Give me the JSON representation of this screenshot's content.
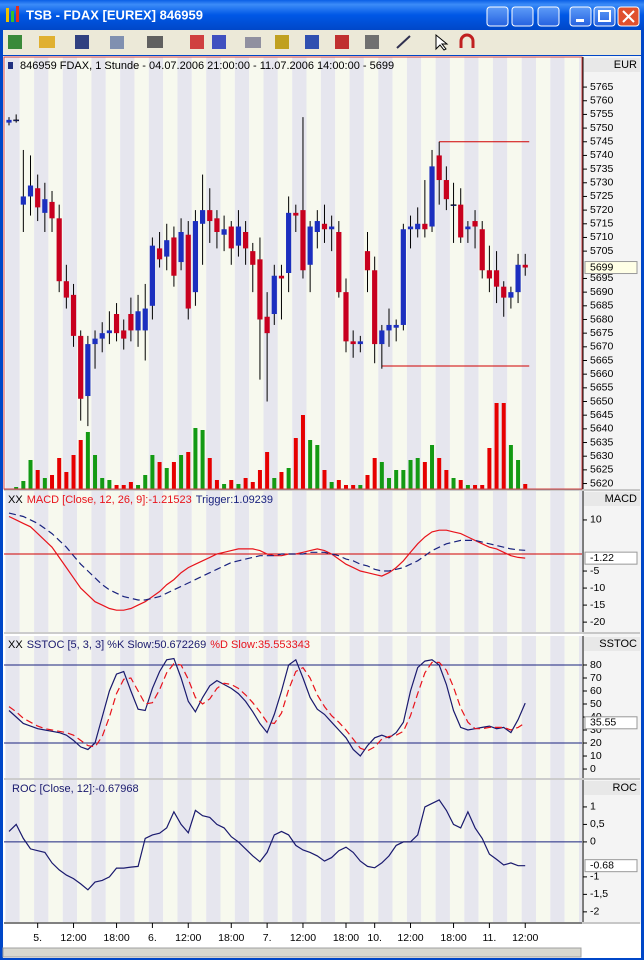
{
  "window": {
    "title": "TSB - FDAX [EUREX] 846959"
  },
  "chart_data": [
    {
      "type": "candlestick",
      "title": "846959 FDAX, 1 Stunde - 04.07.2006 21:00:00 - 11.07.2006 14:00:00 - 5699",
      "axis_label": "EUR",
      "open": [
        5752,
        5753,
        5722,
        5725,
        5728,
        5719,
        5723,
        5717,
        5694,
        5689,
        5674,
        5652,
        5671,
        5673,
        5675,
        5682,
        5676,
        5682,
        5676,
        5676,
        5685,
        5706,
        5703,
        5710,
        5701,
        5711,
        5690,
        5715,
        5720,
        5717,
        5711,
        5714,
        5707,
        5712,
        5705,
        5702,
        5681,
        5682,
        5696,
        5697,
        5719,
        5720,
        5700,
        5712,
        5715,
        5713,
        5712,
        5690,
        5672,
        5671,
        5705,
        5698,
        5671,
        5676,
        5677,
        5678,
        5713,
        5713,
        5715,
        5714,
        5740,
        5731,
        5722,
        5722,
        5713,
        5716,
        5713,
        5698,
        5698,
        5692,
        5688,
        5690,
        5700
      ],
      "high": [
        5754,
        5755,
        5742,
        5740,
        5733,
        5730,
        5727,
        5722,
        5700,
        5693,
        5676,
        5674,
        5676,
        5679,
        5683,
        5686,
        5680,
        5688,
        5689,
        5693,
        5710,
        5712,
        5715,
        5714,
        5717,
        5716,
        5720,
        5733,
        5728,
        5720,
        5718,
        5716,
        5720,
        5716,
        5708,
        5710,
        5690,
        5700,
        5700,
        5725,
        5722,
        5754,
        5716,
        5720,
        5722,
        5718,
        5716,
        5695,
        5676,
        5674,
        5712,
        5703,
        5678,
        5684,
        5680,
        5715,
        5718,
        5721,
        5731,
        5742,
        5745,
        5736,
        5730,
        5728,
        5716,
        5720,
        5716,
        5707,
        5705,
        5694,
        5692,
        5704,
        5704
      ],
      "low": [
        5751,
        5752,
        5712,
        5718,
        5716,
        5712,
        5712,
        5690,
        5684,
        5670,
        5643,
        5641,
        5662,
        5668,
        5671,
        5672,
        5669,
        5672,
        5670,
        5665,
        5680,
        5699,
        5698,
        5692,
        5698,
        5680,
        5685,
        5700,
        5708,
        5706,
        5705,
        5700,
        5703,
        5700,
        5690,
        5658,
        5650,
        5678,
        5680,
        5690,
        5712,
        5695,
        5690,
        5706,
        5708,
        5705,
        5688,
        5668,
        5666,
        5668,
        5690,
        5664,
        5662,
        5670,
        5672,
        5676,
        5706,
        5710,
        5710,
        5712,
        5722,
        5720,
        5708,
        5708,
        5708,
        5706,
        5695,
        5690,
        5686,
        5681,
        5684,
        5686,
        5696
      ],
      "close": [
        5753,
        5753,
        5725,
        5729,
        5721,
        5724,
        5717,
        5694,
        5688,
        5674,
        5651,
        5671,
        5673,
        5675,
        5676,
        5675,
        5673,
        5676,
        5683,
        5684,
        5707,
        5702,
        5709,
        5696,
        5712,
        5684,
        5716,
        5720,
        5716,
        5712,
        5713,
        5706,
        5714,
        5706,
        5700,
        5680,
        5675,
        5696,
        5695,
        5719,
        5718,
        5698,
        5714,
        5716,
        5713,
        5714,
        5690,
        5672,
        5671,
        5672,
        5698,
        5671,
        5676,
        5678,
        5678,
        5713,
        5714,
        5715,
        5713,
        5736,
        5731,
        5724,
        5722,
        5710,
        5714,
        5714,
        5698,
        5695,
        5692,
        5688,
        5690,
        5700,
        5699
      ],
      "volume": [
        0,
        2,
        8,
        29,
        19,
        11,
        14,
        31,
        17,
        34,
        49,
        57,
        34,
        11,
        9,
        4,
        4,
        7,
        4,
        14,
        34,
        27,
        21,
        27,
        34,
        37,
        61,
        59,
        31,
        9,
        5,
        9,
        5,
        11,
        7,
        19,
        37,
        11,
        17,
        21,
        51,
        74,
        49,
        44,
        19,
        7,
        9,
        4,
        4,
        4,
        14,
        31,
        27,
        11,
        19,
        19,
        29,
        31,
        27,
        44,
        31,
        19,
        11,
        9,
        4,
        4,
        4,
        41,
        86,
        86,
        44,
        29,
        5
      ],
      "up_color": "#1c2fbf",
      "down_color": "#c8001e",
      "volume_up_color": "#139a13",
      "volume_down_color": "#e60000",
      "levels": [
        5745,
        5663
      ],
      "level_color": "#d00000",
      "ylim": [
        5618,
        5776
      ],
      "yticks": [
        5765,
        5760,
        5755,
        5750,
        5745,
        5740,
        5735,
        5730,
        5725,
        5720,
        5715,
        5710,
        5705,
        5695,
        5690,
        5685,
        5680,
        5675,
        5670,
        5665,
        5660,
        5655,
        5650,
        5645,
        5640,
        5635,
        5630,
        5625,
        5620
      ],
      "last_label": "5699"
    },
    {
      "type": "line",
      "prefix": "XX",
      "axis_label": "MACD",
      "series": [
        {
          "name": "MACD [Close, 12, 26, 9]:-1.21523",
          "color": "#e8141c",
          "values": [
            11,
            10,
            9,
            8,
            6,
            4,
            2,
            -1,
            -4,
            -7,
            -10,
            -12,
            -14,
            -15,
            -16,
            -16.5,
            -16.5,
            -16,
            -15,
            -14,
            -12.5,
            -11,
            -9,
            -7.5,
            -5.5,
            -4,
            -3,
            -2,
            -1,
            0,
            0.5,
            1,
            1.5,
            1.5,
            1.5,
            1,
            0,
            -0.5,
            -0.5,
            0,
            0,
            0.5,
            1,
            1.5,
            1,
            0,
            -1.5,
            -3,
            -4,
            -5,
            -5.5,
            -6,
            -6.5,
            -5.5,
            -4,
            -2,
            0.5,
            3,
            5,
            6.5,
            7,
            7,
            6.5,
            6,
            5,
            4,
            3,
            2,
            1.5,
            0.5,
            -0.5,
            -1,
            -1.21523
          ]
        },
        {
          "name": "Trigger:1.09239",
          "color": "#1a237e",
          "dashed": true,
          "values": [
            12,
            11.5,
            11,
            10,
            9,
            7.5,
            6,
            4,
            2,
            -0.5,
            -3,
            -5,
            -7,
            -9,
            -10.5,
            -11.5,
            -12.5,
            -13,
            -13.5,
            -13.5,
            -13,
            -12.5,
            -11.5,
            -10.5,
            -9.5,
            -8.5,
            -7.5,
            -6.5,
            -5.5,
            -4.5,
            -3.5,
            -2.5,
            -2,
            -1.5,
            -1,
            -0.5,
            -0.5,
            -0.5,
            0,
            0,
            0,
            0,
            0.5,
            0.5,
            0.5,
            0,
            -0.5,
            -1.5,
            -2,
            -3,
            -3.5,
            -4.5,
            -5,
            -5,
            -4.5,
            -4,
            -3,
            -2,
            -0.5,
            1,
            2,
            3,
            3.5,
            4,
            4,
            4,
            3.5,
            3,
            2.5,
            2,
            1.5,
            1.2,
            1.09239
          ]
        }
      ],
      "hlines": [
        0
      ],
      "hline_color": "#d00000",
      "badge_series": 0,
      "ylim": [
        -22.9,
        18.5
      ],
      "yticks": [
        10,
        -5,
        -10,
        -15,
        -20
      ],
      "last_label": "-1.22"
    },
    {
      "type": "line",
      "prefix": "XX",
      "axis_label": "SSTOC",
      "series": [
        {
          "name": "SSTOC [5, 3, 3] %K Slow:50.672269",
          "color": "#1a1a6e",
          "values": [
            45,
            40,
            35,
            33,
            31,
            30,
            29,
            28,
            26,
            22,
            17,
            15,
            20,
            40,
            60,
            73,
            75,
            60,
            46,
            45,
            62,
            75,
            84,
            85,
            70,
            52,
            44,
            55,
            64,
            68,
            65,
            62,
            58,
            52,
            44,
            35,
            28,
            42,
            60,
            80,
            84,
            70,
            55,
            46,
            42,
            36,
            30,
            24,
            15,
            10,
            18,
            24,
            26,
            24,
            28,
            36,
            60,
            78,
            83,
            84,
            80,
            65,
            45,
            32,
            30,
            31,
            32,
            33,
            31,
            32,
            28,
            38,
            50.672269
          ]
        },
        {
          "name": "%D Slow:35.553343",
          "color": "#e8141c",
          "dashed": true,
          "values": [
            48,
            44,
            39,
            36,
            33,
            31,
            30,
            29,
            28,
            26,
            22,
            18,
            17,
            25,
            40,
            58,
            69,
            70,
            60,
            50,
            51,
            61,
            74,
            81,
            80,
            69,
            55,
            50,
            54,
            62,
            66,
            65,
            62,
            57,
            51,
            44,
            36,
            35,
            43,
            61,
            75,
            78,
            70,
            57,
            48,
            41,
            36,
            30,
            23,
            16,
            14,
            17,
            23,
            25,
            26,
            29,
            41,
            58,
            74,
            82,
            82,
            76,
            63,
            47,
            36,
            31,
            31,
            32,
            32,
            32,
            30,
            32,
            35.553343
          ]
        }
      ],
      "hlines": [
        80,
        20
      ],
      "hline_color": "#1a237e",
      "badge_series": 1,
      "ylim": [
        -6.9,
        102.3
      ],
      "yticks": [
        80,
        70,
        60,
        50,
        40,
        30,
        20,
        10,
        0
      ],
      "last_label": "35.55"
    },
    {
      "type": "line",
      "axis_label": "ROC",
      "series": [
        {
          "name": "ROC [Close, 12]:-0.67968",
          "color": "#1a1a6e",
          "values": [
            0.3,
            0.5,
            0.1,
            -0.2,
            -0.25,
            -0.3,
            -0.6,
            -0.8,
            -0.95,
            -1.05,
            -1.2,
            -1.37,
            -1.15,
            -1.1,
            -1.0,
            -0.75,
            -0.75,
            -0.72,
            -0.7,
            0.1,
            0.2,
            0.25,
            0.4,
            0.86,
            0.5,
            0.26,
            0.9,
            0.75,
            0.7,
            0.5,
            0.4,
            0.15,
            0,
            -0.2,
            -0.4,
            -0.57,
            -0.3,
            0.2,
            0.3,
            0.2,
            -0.1,
            -0.23,
            -0.3,
            -0.4,
            -0.55,
            -0.45,
            -0.25,
            -0.15,
            -0.3,
            -0.55,
            -0.7,
            -0.74,
            -0.6,
            -0.4,
            -0.1,
            0,
            0,
            0.2,
            1.0,
            1.1,
            1.2,
            0.9,
            0.5,
            0.4,
            0.86,
            0.4,
            0.1,
            -0.35,
            -0.5,
            -0.66,
            -0.6,
            -0.68,
            -0.67968
          ]
        }
      ],
      "hlines": [
        0
      ],
      "hline_color": "#1a237e",
      "badge_series": 0,
      "ylim": [
        -2.29,
        1.77
      ],
      "yticks": [
        1,
        {
          "value": 0.5,
          "label": "0,5"
        },
        0,
        -1,
        {
          "value": -1.5,
          "label": "-1,5"
        },
        -2
      ],
      "last_label": "-0.68",
      "categories": [
        null,
        null,
        null,
        null,
        "5.",
        null,
        null,
        null,
        null,
        "12:00",
        null,
        null,
        null,
        null,
        null,
        "18:00",
        null,
        null,
        null,
        null,
        "6.",
        null,
        null,
        null,
        null,
        "12:00",
        null,
        null,
        null,
        null,
        null,
        "18:00",
        null,
        null,
        null,
        null,
        "7.",
        null,
        null,
        null,
        null,
        "12:00",
        null,
        null,
        null,
        null,
        null,
        "18:00",
        null,
        null,
        null,
        "10.",
        null,
        null,
        null,
        null,
        "12:00",
        null,
        null,
        null,
        null,
        null,
        "18:00",
        null,
        null,
        null,
        null,
        "11.",
        null,
        null,
        null,
        null,
        "12:00"
      ]
    }
  ]
}
